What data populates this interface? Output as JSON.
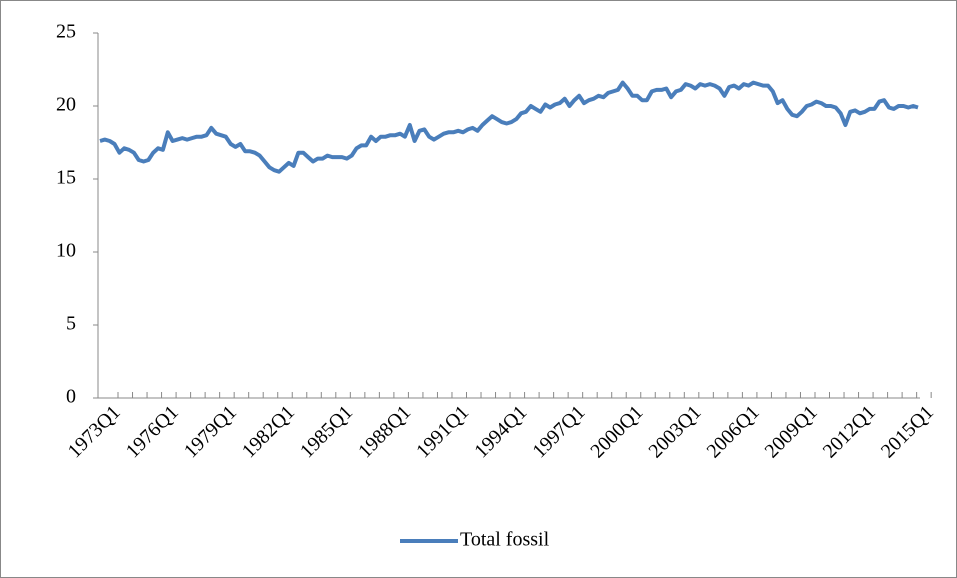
{
  "chart_data": {
    "type": "line",
    "categories": [
      "1973Q1",
      null,
      null,
      null,
      null,
      null,
      null,
      null,
      null,
      null,
      null,
      null,
      "1976Q1",
      null,
      null,
      null,
      null,
      null,
      null,
      null,
      null,
      null,
      null,
      null,
      "1979Q1",
      null,
      null,
      null,
      null,
      null,
      null,
      null,
      null,
      null,
      null,
      null,
      "1982Q1",
      null,
      null,
      null,
      null,
      null,
      null,
      null,
      null,
      null,
      null,
      null,
      "1985Q1",
      null,
      null,
      null,
      null,
      null,
      null,
      null,
      null,
      null,
      null,
      null,
      "1988Q1",
      null,
      null,
      null,
      null,
      null,
      null,
      null,
      null,
      null,
      null,
      null,
      "1991Q1",
      null,
      null,
      null,
      null,
      null,
      null,
      null,
      null,
      null,
      null,
      null,
      "1994Q1",
      null,
      null,
      null,
      null,
      null,
      null,
      null,
      null,
      null,
      null,
      null,
      "1997Q1",
      null,
      null,
      null,
      null,
      null,
      null,
      null,
      null,
      null,
      null,
      null,
      "2000Q1",
      null,
      null,
      null,
      null,
      null,
      null,
      null,
      null,
      null,
      null,
      null,
      "2003Q1",
      null,
      null,
      null,
      null,
      null,
      null,
      null,
      null,
      null,
      null,
      null,
      "2006Q1",
      null,
      null,
      null,
      null,
      null,
      null,
      null,
      null,
      null,
      null,
      null,
      "2009Q1",
      null,
      null,
      null,
      null,
      null,
      null,
      null,
      null,
      null,
      null,
      null,
      "2012Q1",
      null,
      null,
      null,
      null,
      null,
      null,
      null,
      null,
      null,
      null,
      null,
      "2015Q1",
      null
    ],
    "series": [
      {
        "name": "Total fossil",
        "color": "#4a7ebb",
        "values": [
          17.6,
          17.7,
          17.6,
          17.4,
          16.8,
          17.1,
          17.0,
          16.8,
          16.3,
          16.2,
          16.3,
          16.8,
          17.1,
          17.0,
          18.2,
          17.6,
          17.7,
          17.8,
          17.7,
          17.8,
          17.9,
          17.9,
          18.0,
          18.5,
          18.1,
          18.0,
          17.9,
          17.4,
          17.2,
          17.4,
          16.9,
          16.9,
          16.8,
          16.6,
          16.2,
          15.8,
          15.6,
          15.5,
          15.8,
          16.1,
          15.9,
          16.8,
          16.8,
          16.5,
          16.2,
          16.4,
          16.4,
          16.6,
          16.5,
          16.5,
          16.5,
          16.4,
          16.6,
          17.1,
          17.3,
          17.3,
          17.9,
          17.6,
          17.9,
          17.9,
          18.0,
          18.0,
          18.1,
          17.9,
          18.7,
          17.6,
          18.3,
          18.4,
          17.9,
          17.7,
          17.9,
          18.1,
          18.2,
          18.2,
          18.3,
          18.2,
          18.4,
          18.5,
          18.3,
          18.7,
          19.0,
          19.3,
          19.1,
          18.9,
          18.8,
          18.9,
          19.1,
          19.5,
          19.6,
          20.0,
          19.8,
          19.6,
          20.1,
          19.9,
          20.1,
          20.2,
          20.5,
          20.0,
          20.4,
          20.7,
          20.2,
          20.4,
          20.5,
          20.7,
          20.6,
          20.9,
          21.0,
          21.1,
          21.6,
          21.2,
          20.7,
          20.7,
          20.4,
          20.4,
          21.0,
          21.1,
          21.1,
          21.2,
          20.6,
          21.0,
          21.1,
          21.5,
          21.4,
          21.2,
          21.5,
          21.4,
          21.5,
          21.4,
          21.2,
          20.7,
          21.3,
          21.4,
          21.2,
          21.5,
          21.4,
          21.6,
          21.5,
          21.4,
          21.4,
          21.0,
          20.2,
          20.4,
          19.8,
          19.4,
          19.3,
          19.6,
          20.0,
          20.1,
          20.3,
          20.2,
          20.0,
          20.0,
          19.9,
          19.5,
          18.7,
          19.6,
          19.7,
          19.5,
          19.6,
          19.8,
          19.8,
          20.3,
          20.4,
          19.9,
          19.8,
          20.0,
          20.0,
          19.9,
          20.0,
          19.9
        ]
      }
    ],
    "ylim": [
      0,
      25
    ],
    "yticks": [
      0,
      5,
      10,
      15,
      20,
      25
    ],
    "grid": false,
    "legend": "bottom"
  }
}
